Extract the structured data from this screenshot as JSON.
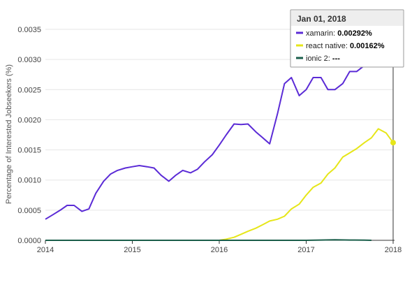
{
  "chart_data": {
    "type": "line",
    "ylabel": "Percentage of Interested Jobseekers (%)",
    "xlabel": "",
    "xlim": [
      2014.0,
      2018.0
    ],
    "ylim": [
      0,
      0.0035
    ],
    "x_ticks": [
      "2014",
      "2015",
      "2016",
      "2017",
      "2018"
    ],
    "y_ticks": [
      "0.0000",
      "0.0005",
      "0.0010",
      "0.0015",
      "0.0020",
      "0.0025",
      "0.0030",
      "0.0035"
    ],
    "grid": true,
    "series": [
      {
        "name": "xamarin",
        "color": "#5b2bd6",
        "x": [
          2014.0,
          2014.08,
          2014.17,
          2014.25,
          2014.33,
          2014.42,
          2014.5,
          2014.58,
          2014.67,
          2014.75,
          2014.83,
          2014.92,
          2015.0,
          2015.08,
          2015.17,
          2015.25,
          2015.33,
          2015.42,
          2015.5,
          2015.58,
          2015.67,
          2015.75,
          2015.83,
          2015.92,
          2016.0,
          2016.08,
          2016.17,
          2016.25,
          2016.33,
          2016.42,
          2016.5,
          2016.58,
          2016.67,
          2016.75,
          2016.83,
          2016.92,
          2017.0,
          2017.08,
          2017.17,
          2017.25,
          2017.33,
          2017.42,
          2017.5,
          2017.58,
          2017.67,
          2017.75,
          2017.83,
          2017.92,
          2018.0
        ],
        "values": [
          0.00035,
          0.00042,
          0.0005,
          0.00058,
          0.00058,
          0.00048,
          0.00052,
          0.00078,
          0.00098,
          0.0011,
          0.00116,
          0.0012,
          0.00122,
          0.00124,
          0.00122,
          0.0012,
          0.00108,
          0.00098,
          0.00108,
          0.00116,
          0.00112,
          0.00118,
          0.0013,
          0.00142,
          0.00158,
          0.00175,
          0.00193,
          0.00192,
          0.00193,
          0.0018,
          0.0017,
          0.0016,
          0.0021,
          0.0026,
          0.0027,
          0.0024,
          0.0025,
          0.0027,
          0.0027,
          0.0025,
          0.0025,
          0.0026,
          0.0028,
          0.0028,
          0.0029,
          0.003,
          0.00298,
          0.00305,
          0.00292
        ]
      },
      {
        "name": "react native",
        "color": "#e6e619",
        "x": [
          2015.67,
          2015.75,
          2015.83,
          2015.92,
          2016.0,
          2016.08,
          2016.17,
          2016.25,
          2016.33,
          2016.42,
          2016.5,
          2016.58,
          2016.67,
          2016.75,
          2016.83,
          2016.92,
          2017.0,
          2017.08,
          2017.17,
          2017.25,
          2017.33,
          2017.42,
          2017.5,
          2017.58,
          2017.67,
          2017.75,
          2017.83,
          2017.92,
          2018.0
        ],
        "values": [
          0.0,
          0.0,
          0.0,
          0.0,
          0.0,
          2e-05,
          5e-05,
          0.0001,
          0.00015,
          0.0002,
          0.00026,
          0.00032,
          0.00035,
          0.0004,
          0.00052,
          0.0006,
          0.00075,
          0.00088,
          0.00095,
          0.0011,
          0.0012,
          0.00138,
          0.00145,
          0.00152,
          0.00162,
          0.0017,
          0.00185,
          0.00178,
          0.00162
        ]
      },
      {
        "name": "ionic 2",
        "color": "#1a5e4a",
        "x": [
          2014.0,
          2015.0,
          2016.0,
          2016.5,
          2016.75,
          2017.0,
          2017.17,
          2017.33,
          2017.5,
          2017.67,
          2017.75
        ],
        "values": [
          0.0,
          0.0,
          0.0,
          0.0,
          0.0,
          0.0,
          5e-06,
          8e-06,
          5e-06,
          2e-06,
          0.0
        ]
      }
    ]
  },
  "tooltip": {
    "date": "Jan 01, 2018",
    "rows": [
      {
        "label": "xamarin",
        "value": "0.00292%",
        "color": "#5b2bd6"
      },
      {
        "label": "react native",
        "value": "0.00162%",
        "color": "#e6e619"
      },
      {
        "label": "ionic 2",
        "value": "---",
        "color": "#1a5e4a"
      }
    ]
  }
}
